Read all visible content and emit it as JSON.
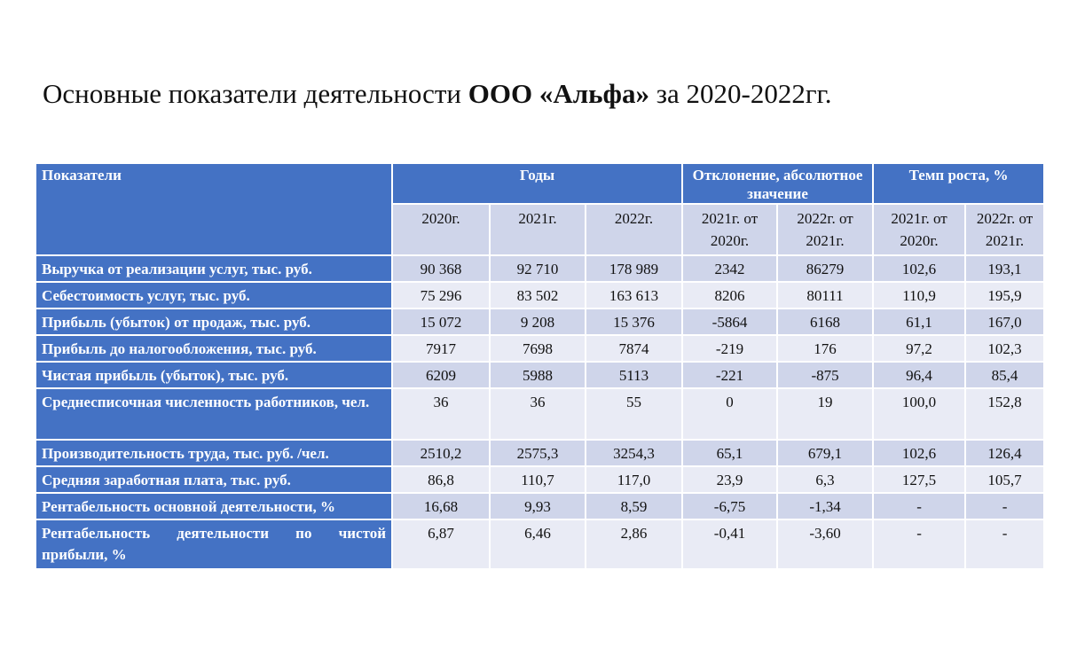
{
  "title": {
    "prefix": "Основные показатели деятельности ",
    "company": "ООО «Альфа»",
    "suffix": " за 2020-2022гг."
  },
  "table": {
    "header": {
      "indicator": "Показатели",
      "years": "Годы",
      "deviation": "Отклонение, абсолютное значение",
      "growth": "Темп роста, %"
    },
    "subheaders": [
      "2020г.",
      "2021г.",
      "2022г.",
      "2021г. от 2020г.",
      "2022г. от 2021г.",
      "2021г. от 2020г.",
      "2022г. от 2021г."
    ],
    "rows": [
      {
        "label": "Выручка от реализации услуг, тыс. руб.",
        "values": [
          "90 368",
          "92 710",
          "178 989",
          "2342",
          "86279",
          "102,6",
          "193,1"
        ]
      },
      {
        "label": "Себестоимость услуг, тыс. руб.",
        "values": [
          "75 296",
          "83 502",
          "163 613",
          "8206",
          "80111",
          "110,9",
          "195,9"
        ]
      },
      {
        "label": "Прибыль (убыток) от продаж, тыс. руб.",
        "values": [
          "15 072",
          "9 208",
          "15 376",
          "-5864",
          "6168",
          "61,1",
          "167,0"
        ]
      },
      {
        "label": "Прибыль до налогообложения, тыс. руб.",
        "values": [
          "7917",
          "7698",
          "7874",
          "-219",
          "176",
          "97,2",
          "102,3"
        ]
      },
      {
        "label": "Чистая прибыль (убыток), тыс. руб.",
        "values": [
          "6209",
          "5988",
          "5113",
          "-221",
          "-875",
          "96,4",
          "85,4"
        ]
      },
      {
        "label": "Среднесписочная численность работников, чел.",
        "values": [
          "36",
          "36",
          "55",
          "0",
          "19",
          "100,0",
          "152,8"
        ]
      },
      {
        "label": "Производительность труда, тыс. руб. /чел.",
        "values": [
          "2510,2",
          "2575,3",
          "3254,3",
          "65,1",
          "679,1",
          "102,6",
          "126,4"
        ]
      },
      {
        "label": "Средняя заработная плата, тыс. руб.",
        "values": [
          "86,8",
          "110,7",
          "117,0",
          "23,9",
          "6,3",
          "127,5",
          "105,7"
        ]
      },
      {
        "label": "Рентабельность основной деятельности, %",
        "values": [
          "16,68",
          "9,93",
          "8,59",
          "-6,75",
          "-1,34",
          "-",
          "-"
        ]
      },
      {
        "label": "Рентабельность деятельности по чистой прибыли, %",
        "values": [
          "6,87",
          "6,46",
          "2,86",
          "-0,41",
          "-3,60",
          "-",
          "-"
        ]
      }
    ]
  }
}
